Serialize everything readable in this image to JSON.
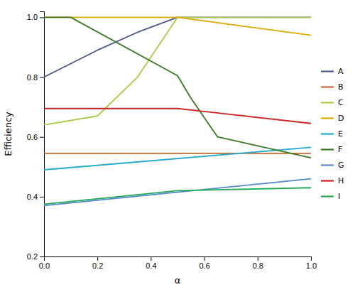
{
  "chart_data": {
    "type": "line",
    "xlabel": "α",
    "ylabel": "Efficiency",
    "xlim": [
      0,
      1
    ],
    "ylim": [
      0.2,
      1.02
    ],
    "xticks": [
      {
        "value": 0,
        "label": "0.0"
      },
      0.2,
      0.4,
      0.6,
      0.8,
      {
        "value": 1,
        "label": "1.0"
      }
    ],
    "yticks": [
      0.2,
      0.4,
      0.6,
      0.8,
      {
        "value": 1.0,
        "label": "1.0"
      }
    ],
    "grid": false,
    "legend": "right",
    "series": [
      {
        "name": "A",
        "color": "#4a5a8a",
        "x": [
          0,
          0.2,
          0.35,
          0.5,
          1.0
        ],
        "values": [
          0.8,
          0.89,
          0.95,
          1.0,
          1.0
        ]
      },
      {
        "name": "B",
        "color": "#cc6633",
        "x": [
          0,
          1.0
        ],
        "values": [
          0.545,
          0.545
        ]
      },
      {
        "name": "C",
        "color": "#aacc44",
        "x": [
          0,
          0.2,
          0.35,
          0.5,
          1.0
        ],
        "values": [
          0.64,
          0.67,
          0.8,
          1.0,
          1.0
        ]
      },
      {
        "name": "D",
        "color": "#ddaa00",
        "x": [
          0,
          0.5,
          1.0
        ],
        "values": [
          1.0,
          1.0,
          0.94
        ]
      },
      {
        "name": "E",
        "color": "#22aacc",
        "x": [
          0,
          1.0
        ],
        "values": [
          0.49,
          0.565
        ]
      },
      {
        "name": "F",
        "color": "#3a7a20",
        "x": [
          0,
          0.1,
          0.5,
          0.55,
          0.65,
          1.0
        ],
        "values": [
          1.0,
          1.0,
          0.805,
          0.73,
          0.6,
          0.53
        ]
      },
      {
        "name": "G",
        "color": "#5588cc",
        "x": [
          0,
          1.0
        ],
        "values": [
          0.37,
          0.46
        ]
      },
      {
        "name": "H",
        "color": "#cc2222",
        "x": [
          0,
          0.5,
          0.6,
          1.0
        ],
        "values": [
          0.695,
          0.695,
          0.685,
          0.645
        ]
      },
      {
        "name": "I",
        "color": "#22aa55",
        "x": [
          0,
          0.5,
          1.0
        ],
        "values": [
          0.375,
          0.42,
          0.43
        ]
      }
    ]
  }
}
